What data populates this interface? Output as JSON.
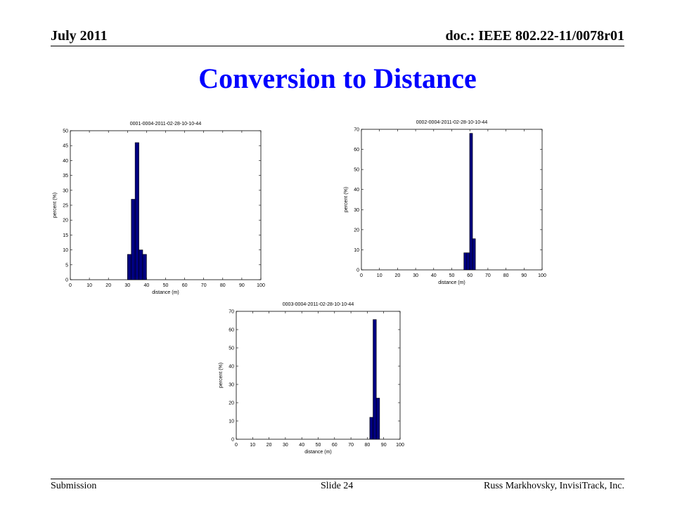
{
  "header": {
    "left": "July 2011",
    "right": "doc.: IEEE 802.22-11/0078r01"
  },
  "title": "Conversion to Distance",
  "footer": {
    "left": "Submission",
    "center": "Slide 24",
    "right": "Russ Markhovsky, InvisiTrack, Inc."
  },
  "chart_data": [
    {
      "type": "bar",
      "title": "0001-0004-2011-02-28-10-10-44",
      "xlabel": "distance (m)",
      "ylabel": "percent (%)",
      "xlim": [
        0,
        100
      ],
      "ylim": [
        0,
        50
      ],
      "xticks": [
        0,
        10,
        20,
        30,
        40,
        50,
        60,
        70,
        80,
        90,
        100
      ],
      "yticks": [
        0,
        5,
        10,
        15,
        20,
        25,
        30,
        35,
        40,
        45,
        50
      ],
      "bin_width": 2,
      "x": [
        31,
        33,
        35,
        37,
        39
      ],
      "values": [
        8.5,
        27,
        46,
        10,
        8.5
      ],
      "color": "#000080"
    },
    {
      "type": "bar",
      "title": "0002-0004-2011-02-28-10-10-44",
      "xlabel": "distance (m)",
      "ylabel": "percent (%)",
      "xlim": [
        0,
        100
      ],
      "ylim": [
        0,
        70
      ],
      "xticks": [
        0,
        10,
        20,
        30,
        40,
        50,
        60,
        70,
        80,
        90,
        100
      ],
      "yticks": [
        0,
        10,
        20,
        30,
        40,
        50,
        60,
        70
      ],
      "bin_width": 1.6,
      "x": [
        57.5,
        59.1,
        60.7,
        62.3
      ],
      "values": [
        8.5,
        8.5,
        68,
        15.5
      ],
      "color": "#000080"
    },
    {
      "type": "bar",
      "title": "0003-0004-2011-02-28-10-10-44",
      "xlabel": "distance (m)",
      "ylabel": "percent (%)",
      "xlim": [
        0,
        100
      ],
      "ylim": [
        0,
        70
      ],
      "xticks": [
        0,
        10,
        20,
        30,
        40,
        50,
        60,
        70,
        80,
        90,
        100
      ],
      "yticks": [
        0,
        10,
        20,
        30,
        40,
        50,
        60,
        70
      ],
      "bin_width": 2,
      "x": [
        82.5,
        84.5,
        86.5
      ],
      "values": [
        12,
        65.5,
        22.5
      ],
      "color": "#000080"
    }
  ]
}
